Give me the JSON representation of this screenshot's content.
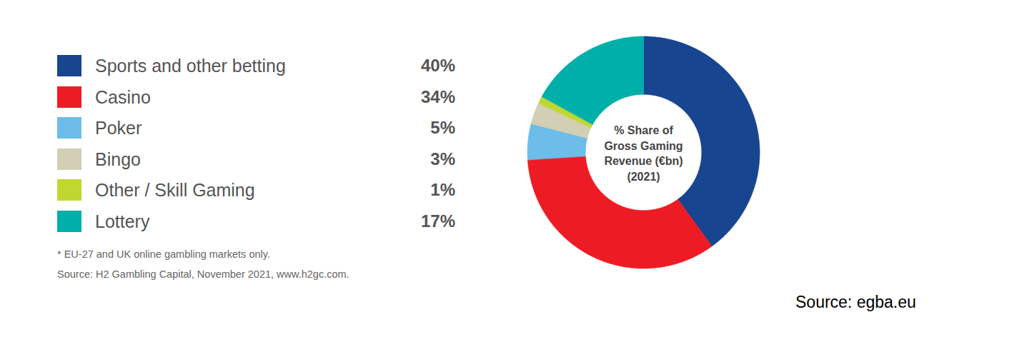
{
  "chart_data": {
    "type": "pie",
    "title": "% Share of\nGross Gaming\nRevenue (€bn)\n(2021)",
    "categories": [
      "Sports and other betting",
      "Casino",
      "Poker",
      "Bingo",
      "Other / Skill Gaming",
      "Lottery"
    ],
    "values": [
      40,
      34,
      5,
      3,
      1,
      17
    ],
    "value_labels": [
      "40%",
      "34%",
      "5%",
      "3%",
      "1%",
      "17%"
    ],
    "colors": [
      "#17458f",
      "#ed1c24",
      "#6cbde9",
      "#d3cfb4",
      "#bfd730",
      "#00afa9"
    ],
    "legend": "left",
    "footnotes": [
      "* EU-27 and UK online gambling markets only.",
      "Source: H2 Gambling Capital, November 2021, www.h2gc.com."
    ],
    "source": "Source: egba.eu"
  }
}
